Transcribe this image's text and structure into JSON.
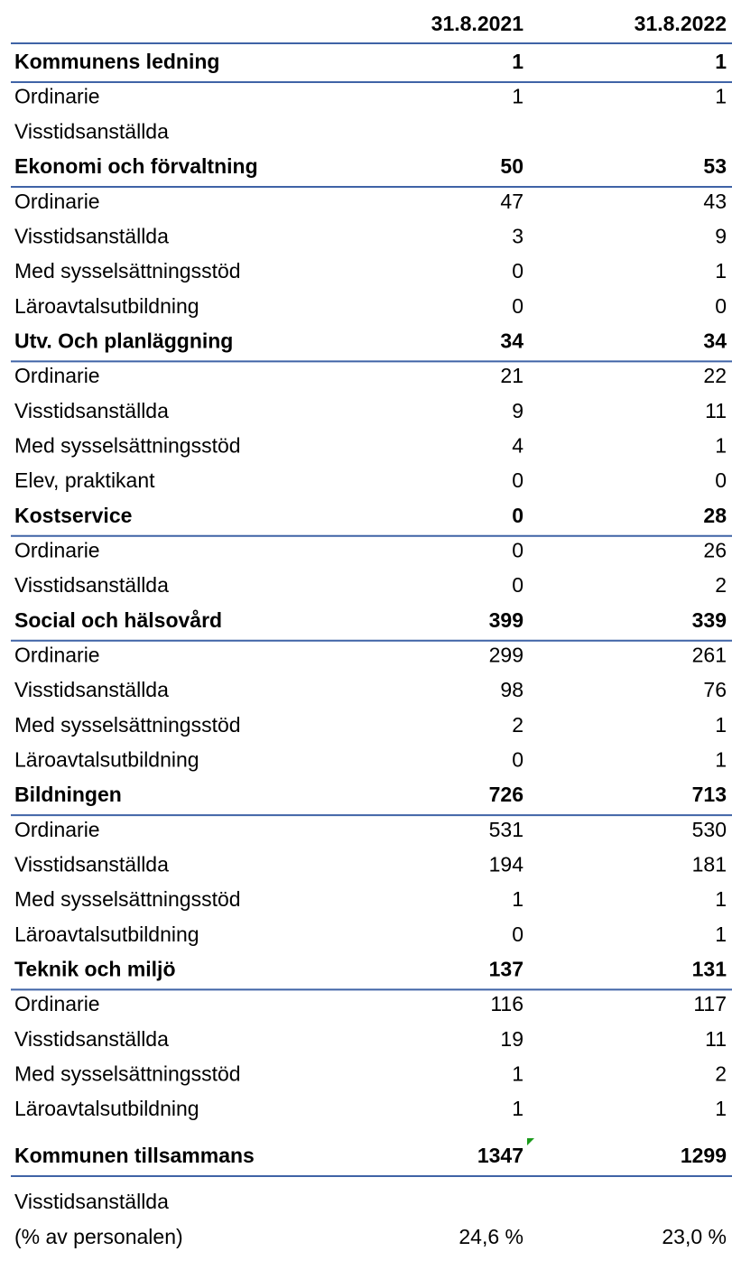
{
  "table": {
    "columns": [
      "31.8.2021",
      "31.8.2022"
    ],
    "rows": [
      {
        "label": "Kommunens ledning",
        "bold": true,
        "values": [
          1,
          1
        ]
      },
      {
        "label": "Ordinarie",
        "values": [
          1,
          1
        ]
      },
      {
        "label": "Visstidsanställda",
        "values": [
          null,
          null
        ]
      },
      {
        "label": "Ekonomi och förvaltning",
        "bold": true,
        "values": [
          50,
          53
        ]
      },
      {
        "label": "Ordinarie",
        "values": [
          47,
          43
        ]
      },
      {
        "label": "Visstidsanställda",
        "values": [
          3,
          9
        ]
      },
      {
        "label": "Med sysselsättningsstöd",
        "values": [
          0,
          1
        ]
      },
      {
        "label": "Läroavtalsutbildning",
        "values": [
          0,
          0
        ]
      },
      {
        "label": "Utv. Och planläggning",
        "bold": true,
        "values": [
          34,
          34
        ]
      },
      {
        "label": "Ordinarie",
        "values": [
          21,
          22
        ]
      },
      {
        "label": "Visstidsanställda",
        "values": [
          9,
          11
        ]
      },
      {
        "label": "Med sysselsättningsstöd",
        "values": [
          4,
          1
        ]
      },
      {
        "label": "Elev, praktikant",
        "values": [
          0,
          0
        ]
      },
      {
        "label": "Kostservice",
        "bold": true,
        "values": [
          0,
          28
        ]
      },
      {
        "label": "Ordinarie",
        "values": [
          0,
          26
        ]
      },
      {
        "label": "Visstidsanställda",
        "values": [
          0,
          2
        ]
      },
      {
        "label": "Social och hälsovård",
        "bold": true,
        "values": [
          399,
          339
        ]
      },
      {
        "label": "Ordinarie",
        "values": [
          299,
          261
        ]
      },
      {
        "label": "Visstidsanställda",
        "values": [
          98,
          76
        ]
      },
      {
        "label": "Med sysselsättningsstöd",
        "values": [
          2,
          1
        ]
      },
      {
        "label": "Läroavtalsutbildning",
        "values": [
          0,
          1
        ]
      },
      {
        "label": "Bildningen",
        "bold": true,
        "values": [
          726,
          713
        ]
      },
      {
        "label": "Ordinarie",
        "values": [
          531,
          530
        ]
      },
      {
        "label": "Visstidsanställda",
        "values": [
          194,
          181
        ]
      },
      {
        "label": "Med sysselsättningsstöd",
        "values": [
          1,
          1
        ]
      },
      {
        "label": "Läroavtalsutbildning",
        "values": [
          0,
          1
        ]
      },
      {
        "label": "Teknik och miljö",
        "bold": true,
        "values": [
          137,
          131
        ]
      },
      {
        "label": "Ordinarie",
        "values": [
          116,
          117
        ]
      },
      {
        "label": "Visstidsanställda",
        "values": [
          19,
          11
        ]
      },
      {
        "label": "Med sysselsättningsstöd",
        "values": [
          1,
          2
        ]
      },
      {
        "label": "Läroavtalsutbildning",
        "values": [
          1,
          1
        ]
      }
    ],
    "summary": [
      {
        "label": "Kommunen tillsammans",
        "bold": true,
        "values": [
          1347,
          1299
        ]
      },
      {
        "label": "Visstidsanställda",
        "values": [
          null,
          null
        ]
      },
      {
        "label": "(% av personalen)",
        "values": [
          "24,6 %",
          "23,0 %"
        ]
      }
    ]
  }
}
